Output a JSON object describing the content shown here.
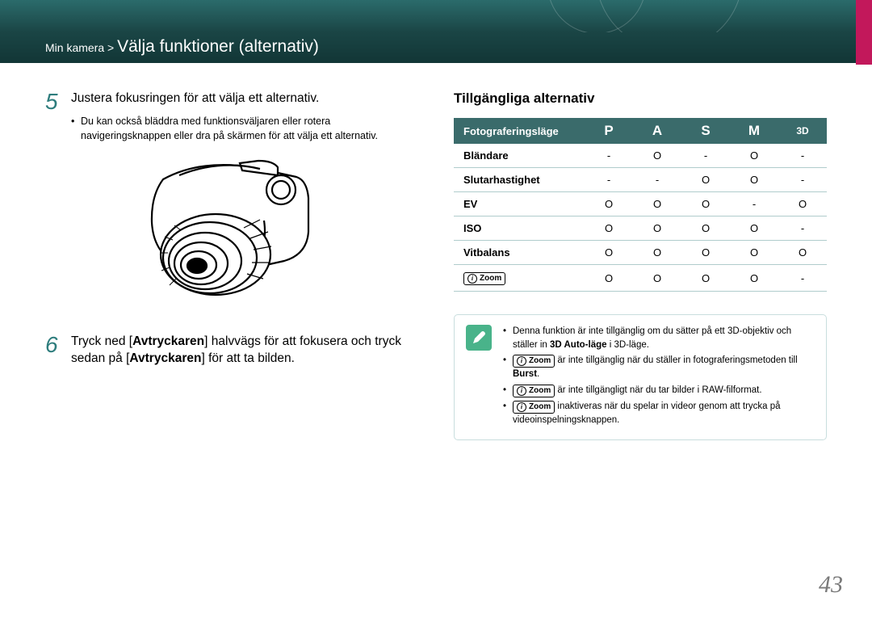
{
  "header": {
    "breadcrumb_prefix": "Min kamera > ",
    "title": "Välja funktioner (alternativ)"
  },
  "left": {
    "step5": {
      "num": "5",
      "text": "Justera fokusringen för att välja ett alternativ.",
      "bullet": "Du kan också bläddra med funktionsväljaren eller rotera navigeringsknappen eller dra på skärmen för att välja ett alternativ."
    },
    "step6": {
      "num": "6",
      "text_pre": "Tryck ned [",
      "kw1": "Avtryckaren",
      "text_mid": "] halvvägs för att fokusera och tryck sedan på [",
      "kw2": "Avtryckaren",
      "text_post": "] för att ta bilden."
    }
  },
  "right": {
    "heading": "Tillgängliga alternativ",
    "table": {
      "col_label": "Fotograferingsläge",
      "modes": [
        "P",
        "A",
        "S",
        "M",
        "3D"
      ],
      "rows": [
        {
          "name": "Bländare",
          "cells": [
            "-",
            "O",
            "-",
            "O",
            "-"
          ]
        },
        {
          "name": "Slutarhastighet",
          "cells": [
            "-",
            "-",
            "O",
            "O",
            "-"
          ]
        },
        {
          "name": "EV",
          "cells": [
            "O",
            "O",
            "O",
            "-",
            "O"
          ]
        },
        {
          "name": "ISO",
          "cells": [
            "O",
            "O",
            "O",
            "O",
            "-"
          ]
        },
        {
          "name": "Vitbalans",
          "cells": [
            "O",
            "O",
            "O",
            "O",
            "O"
          ]
        }
      ],
      "zoom_row": {
        "zoom_label": "Zoom",
        "cells": [
          "O",
          "O",
          "O",
          "O",
          "-"
        ]
      }
    },
    "notes": {
      "n1_pre": "Denna funktion är inte tillgänglig om du sätter på ett 3D-objektiv och ställer in ",
      "n1_bold": "3D Auto-läge",
      "n1_post": " i 3D-läge.",
      "n2_pre": " är inte tillgänglig när du ställer in fotograferingsmetoden till ",
      "n2_bold": "Burst",
      "n2_post": ".",
      "n3": " är inte tillgängligt när du tar bilder i RAW-filformat.",
      "n4": " inaktiveras när du spelar in videor genom att trycka på videoinspelningsknappen.",
      "zoom_label": "Zoom"
    }
  },
  "page_number": "43",
  "colors": {
    "teal_dark": "#1a4545",
    "teal_mid": "#3a6b6b",
    "accent_ok": "#49b38a",
    "magenta": "#c2185b",
    "rule": "#b0cccc"
  }
}
